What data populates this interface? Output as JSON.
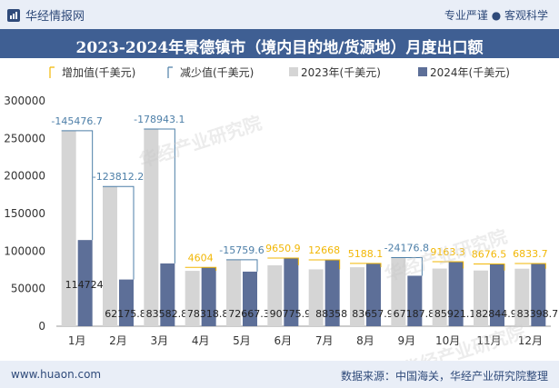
{
  "header": {
    "brand": "华经情报网",
    "tagline": "专业严谨 ● 客观科学"
  },
  "title": "2023-2024年景德镇市（境内目的地/货源地）月度出口额",
  "footer": {
    "website": "www.huaon.com",
    "source": "数据来源：中国海关，华经产业研究院整理"
  },
  "watermark": "华经产业研究院",
  "colors": {
    "bar2023": "#d5d5d5",
    "bar2024": "#5d6f98",
    "increase": "#f2b705",
    "decrease": "#4d7fa8",
    "title_bg": "#3f5f93"
  },
  "chart_data": {
    "type": "bar",
    "categories": [
      "1月",
      "2月",
      "3月",
      "4月",
      "5月",
      "6月",
      "7月",
      "8月",
      "9月",
      "10月",
      "11月",
      "12月"
    ],
    "legend": [
      "增加值(千美元)",
      "减少值(千美元)",
      "2023年(千美元)",
      "2024年(千美元)"
    ],
    "ylim": [
      0,
      300000
    ],
    "yticks": [
      "0",
      "50000",
      "100000",
      "150000",
      "200000",
      "250000",
      "300000"
    ],
    "series": [
      {
        "name": "2023年(千美元)",
        "values": [
          260201,
          185988,
          262526,
          73715,
          88427,
          81125,
          75690,
          78470,
          91365,
          76758,
          74168,
          76565
        ]
      },
      {
        "name": "2024年(千美元)",
        "values": [
          114724,
          62175.8,
          83582.8,
          78318.8,
          72667.3,
          90775.9,
          88358,
          83657.9,
          67187.8,
          85921.1,
          82844.9,
          83398.7
        ]
      }
    ],
    "bar_labels_2024": [
      "114724",
      "62175.8",
      "83582.8",
      "78318.8",
      "72667.3",
      "90775.9",
      "88358",
      "83657.9",
      "67187.8",
      "85921.1",
      "82844.9",
      "83398.7"
    ],
    "change_labels": [
      "-145476.7",
      "-123812.2",
      "-178943.1",
      "4604",
      "-15759.6",
      "9650.9",
      "12668",
      "5188.1",
      "-24176.8",
      "9163.3",
      "8676.5",
      "6833.7"
    ]
  }
}
